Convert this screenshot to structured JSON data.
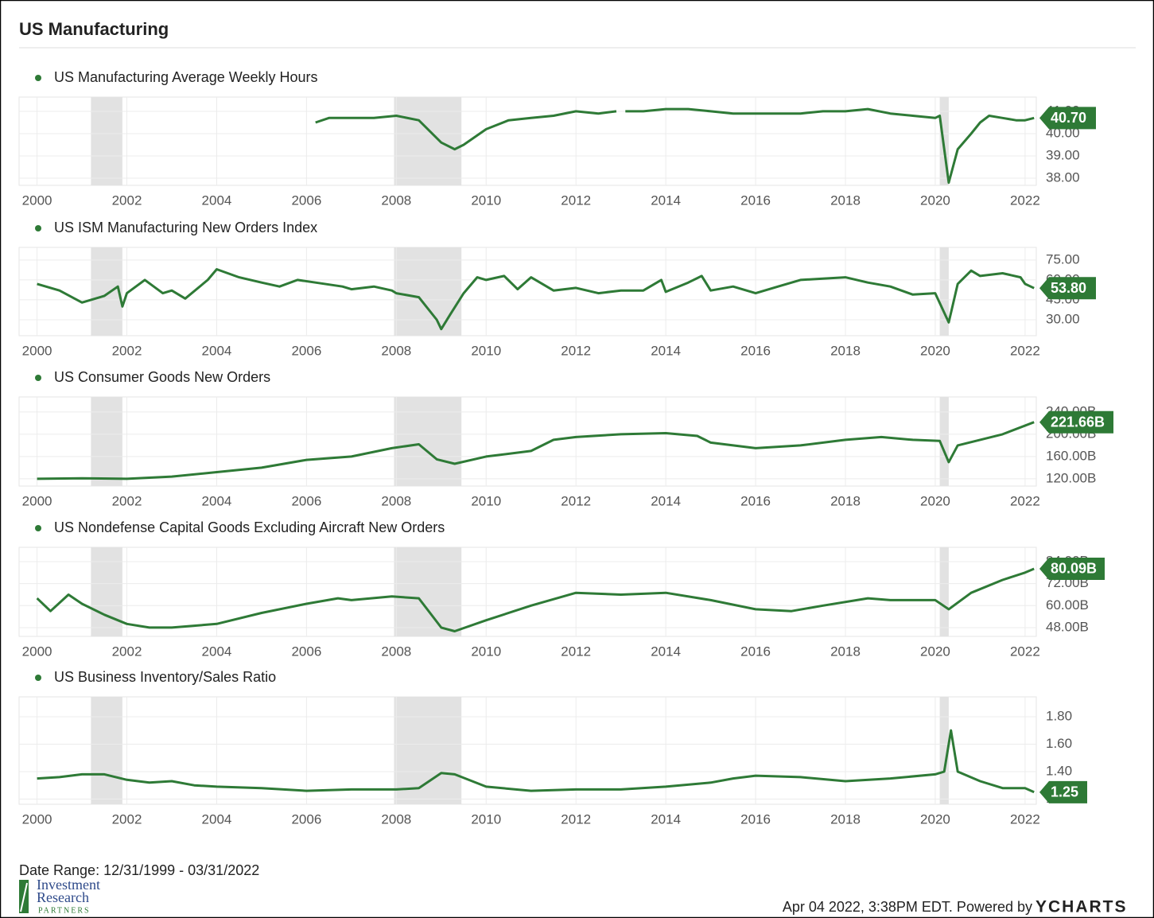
{
  "title": "US Manufacturing",
  "date_range": "Date Range: 12/31/1999 - 03/31/2022",
  "logo": {
    "line1": "Investment",
    "line2": "Research",
    "line3": "PARTNERS"
  },
  "footer": "Apr 04 2022, 3:38PM EDT. Powered by",
  "brand": "YCHARTS",
  "shaded_ranges": [
    [
      2001.2,
      2001.9
    ],
    [
      2007.95,
      2009.45
    ],
    [
      2020.1,
      2020.3
    ]
  ],
  "chart_data": [
    {
      "type": "line",
      "xlim": [
        1999.6,
        2022.25
      ],
      "xticks": [
        2000,
        2002,
        2004,
        2006,
        2008,
        2010,
        2012,
        2014,
        2016,
        2018,
        2020,
        2022
      ],
      "ylim": [
        37.68,
        41.64
      ],
      "yticks": [
        {
          "value": 38,
          "label": "38.00"
        },
        {
          "value": 39,
          "label": "39.00"
        },
        {
          "value": 40,
          "label": "40.00"
        },
        {
          "value": 41,
          "label": "41.00"
        }
      ],
      "grid": true,
      "x": [
        2006.2,
        2006.5,
        2007,
        2007.5,
        2008,
        2008.5,
        2009,
        2009.3,
        2009.5,
        2010,
        2010.5,
        2011,
        2011.5,
        2012,
        2012.5,
        2012.9,
        2013,
        2013.1,
        2013.5,
        2014,
        2014.5,
        2015,
        2015.5,
        2016,
        2016.5,
        2017,
        2017.5,
        2018,
        2018.5,
        2019,
        2019.5,
        2020,
        2020.1,
        2020.3,
        2020.5,
        2020.8,
        2021,
        2021.2,
        2021.5,
        2021.8,
        2022,
        2022.2
      ],
      "series": [
        {
          "name": "US Manufacturing Average Weekly Hours",
          "color": "#2e7a36",
          "values": [
            40.5,
            40.7,
            40.7,
            40.7,
            40.8,
            40.6,
            39.6,
            39.3,
            39.5,
            40.2,
            40.6,
            40.7,
            40.8,
            41.0,
            40.9,
            41.0,
            null,
            41.0,
            41.0,
            41.1,
            41.1,
            41.0,
            40.9,
            40.9,
            40.9,
            40.9,
            41.0,
            41.0,
            41.1,
            40.9,
            40.8,
            40.7,
            40.8,
            37.8,
            39.3,
            40.0,
            40.5,
            40.8,
            40.7,
            40.6,
            40.6,
            40.7
          ],
          "value_labels": [
            null,
            null,
            null,
            null,
            null,
            null,
            null,
            null,
            null,
            null,
            null,
            null,
            null,
            null,
            null,
            null,
            null,
            null,
            null,
            null,
            null,
            null,
            null,
            null,
            null,
            null,
            null,
            null,
            null,
            null,
            null,
            null,
            null,
            null,
            null,
            null,
            null,
            null,
            null,
            null,
            null,
            "40.70"
          ]
        }
      ]
    },
    {
      "type": "line",
      "xlim": [
        1999.6,
        2022.25
      ],
      "xticks": [
        2000,
        2002,
        2004,
        2006,
        2008,
        2010,
        2012,
        2014,
        2016,
        2018,
        2020,
        2022
      ],
      "ylim": [
        18,
        84.5
      ],
      "yticks": [
        {
          "value": 30,
          "label": "30.00"
        },
        {
          "value": 45,
          "label": "45.00"
        },
        {
          "value": 60,
          "label": "60.00"
        },
        {
          "value": 75,
          "label": "75.00"
        }
      ],
      "grid": true,
      "x": [
        2000,
        2000.5,
        2001,
        2001.5,
        2001.8,
        2001.9,
        2002,
        2002.4,
        2002.8,
        2003,
        2003.3,
        2003.8,
        2004,
        2004.5,
        2005,
        2005.4,
        2005.8,
        2006.2,
        2006.8,
        2007,
        2007.5,
        2007.9,
        2008,
        2008.5,
        2008.9,
        2009,
        2009.2,
        2009.5,
        2009.8,
        2010,
        2010.4,
        2010.7,
        2011,
        2011.5,
        2012,
        2012.5,
        2013,
        2013.5,
        2013.9,
        2014,
        2014.5,
        2014.8,
        2015,
        2015.5,
        2016,
        2016.5,
        2017,
        2017.5,
        2018,
        2018.5,
        2019,
        2019.5,
        2020,
        2020.3,
        2020.5,
        2020.8,
        2021,
        2021.5,
        2021.9,
        2022,
        2022.2
      ],
      "series": [
        {
          "name": "US ISM Manufacturing New Orders Index",
          "color": "#2e7a36",
          "values": [
            57,
            52,
            43,
            48,
            55,
            40,
            50,
            60,
            50,
            52,
            46,
            60,
            68,
            62,
            58,
            55,
            60,
            58,
            55,
            53,
            55,
            52,
            50,
            47,
            30,
            23,
            34,
            50,
            62,
            60,
            63,
            53,
            62,
            52,
            54,
            50,
            52,
            52,
            60,
            51,
            58,
            63,
            52,
            55,
            50,
            55,
            60,
            61,
            62,
            58,
            55,
            49,
            50,
            28,
            57,
            67,
            63,
            65,
            62,
            57,
            53.8
          ],
          "value_labels": [
            null,
            null,
            null,
            null,
            null,
            null,
            null,
            null,
            null,
            null,
            null,
            null,
            null,
            null,
            null,
            null,
            null,
            null,
            null,
            null,
            null,
            null,
            null,
            null,
            null,
            null,
            null,
            null,
            null,
            null,
            null,
            null,
            null,
            null,
            null,
            null,
            null,
            null,
            null,
            null,
            null,
            null,
            null,
            null,
            null,
            null,
            null,
            null,
            null,
            null,
            null,
            null,
            null,
            null,
            null,
            null,
            null,
            null,
            null,
            null,
            "53.80"
          ]
        }
      ]
    },
    {
      "type": "line",
      "xlim": [
        1999.6,
        2022.25
      ],
      "xticks": [
        2000,
        2002,
        2004,
        2006,
        2008,
        2010,
        2012,
        2014,
        2016,
        2018,
        2020,
        2022
      ],
      "ylim": [
        107,
        267
      ],
      "yticks": [
        {
          "value": 120,
          "label": "120.00B"
        },
        {
          "value": 160,
          "label": "160.00B"
        },
        {
          "value": 200,
          "label": "200.00B"
        },
        {
          "value": 240,
          "label": "240.00B"
        }
      ],
      "grid": true,
      "x": [
        2000,
        2001,
        2002,
        2003,
        2004,
        2005,
        2006,
        2007,
        2007.9,
        2008.5,
        2008.9,
        2009.3,
        2010,
        2011,
        2011.5,
        2012,
        2013,
        2014,
        2014.7,
        2015,
        2016,
        2017,
        2018,
        2018.8,
        2019.5,
        2020.1,
        2020.3,
        2020.5,
        2021,
        2021.5,
        2022.2
      ],
      "series": [
        {
          "name": "US Consumer Goods New Orders",
          "color": "#2e7a36",
          "values": [
            120,
            121,
            120,
            124,
            132,
            140,
            154,
            160,
            175,
            182,
            155,
            147,
            160,
            170,
            190,
            195,
            200,
            202,
            197,
            185,
            175,
            180,
            190,
            195,
            190,
            188,
            150,
            180,
            190,
            200,
            221.66
          ],
          "value_labels": [
            null,
            null,
            null,
            null,
            null,
            null,
            null,
            null,
            null,
            null,
            null,
            null,
            null,
            null,
            null,
            null,
            null,
            null,
            null,
            null,
            null,
            null,
            null,
            null,
            null,
            null,
            null,
            null,
            null,
            null,
            "221.66B"
          ]
        }
      ]
    },
    {
      "type": "line",
      "xlim": [
        1999.6,
        2022.25
      ],
      "xticks": [
        2000,
        2002,
        2004,
        2006,
        2008,
        2010,
        2012,
        2014,
        2016,
        2018,
        2020,
        2022
      ],
      "ylim": [
        43.2,
        91.8
      ],
      "yticks": [
        {
          "value": 48,
          "label": "48.00B"
        },
        {
          "value": 60,
          "label": "60.00B"
        },
        {
          "value": 72,
          "label": "72.00B"
        },
        {
          "value": 84,
          "label": "84.00B"
        }
      ],
      "grid": true,
      "x": [
        2000,
        2000.3,
        2000.7,
        2001,
        2001.5,
        2002,
        2002.5,
        2003,
        2004,
        2005,
        2006,
        2006.7,
        2007,
        2007.9,
        2008.5,
        2009,
        2009.3,
        2010,
        2011,
        2012,
        2013,
        2014,
        2015,
        2016,
        2016.8,
        2017.5,
        2018.5,
        2019,
        2020,
        2020.3,
        2020.8,
        2021.5,
        2022,
        2022.2
      ],
      "series": [
        {
          "name": "US Nondefense Capital Goods Excluding Aircraft New Orders",
          "color": "#2e7a36",
          "values": [
            64,
            57,
            66,
            61,
            55,
            50,
            48,
            48,
            50,
            56,
            61,
            64,
            63,
            65,
            64,
            48,
            46,
            52,
            60,
            67,
            66,
            67,
            63,
            58,
            57,
            60,
            64,
            63,
            63,
            58,
            67,
            74,
            78,
            80.09
          ],
          "value_labels": [
            null,
            null,
            null,
            null,
            null,
            null,
            null,
            null,
            null,
            null,
            null,
            null,
            null,
            null,
            null,
            null,
            null,
            null,
            null,
            null,
            null,
            null,
            null,
            null,
            null,
            null,
            null,
            null,
            null,
            null,
            null,
            null,
            null,
            "80.09B"
          ]
        }
      ]
    },
    {
      "type": "line",
      "xlim": [
        1999.6,
        2022.25
      ],
      "xticks": [
        2000,
        2002,
        2004,
        2006,
        2008,
        2010,
        2012,
        2014,
        2016,
        2018,
        2020,
        2022
      ],
      "ylim": [
        1.162,
        1.945
      ],
      "yticks": [
        {
          "value": 1.2,
          "label": "1.20"
        },
        {
          "value": 1.4,
          "label": "1.40"
        },
        {
          "value": 1.6,
          "label": "1.60"
        },
        {
          "value": 1.8,
          "label": "1.80"
        }
      ],
      "grid": true,
      "x": [
        2000,
        2000.5,
        2001,
        2001.5,
        2002,
        2002.5,
        2003,
        2003.5,
        2004,
        2005,
        2006,
        2007,
        2008,
        2008.5,
        2009,
        2009.3,
        2010,
        2011,
        2012,
        2013,
        2014,
        2015,
        2015.5,
        2016,
        2017,
        2018,
        2019,
        2020,
        2020.2,
        2020.35,
        2020.5,
        2021,
        2021.5,
        2022,
        2022.2
      ],
      "series": [
        {
          "name": "US Business Inventory/Sales Ratio",
          "color": "#2e7a36",
          "values": [
            1.35,
            1.36,
            1.38,
            1.38,
            1.34,
            1.32,
            1.33,
            1.3,
            1.29,
            1.28,
            1.26,
            1.27,
            1.27,
            1.28,
            1.39,
            1.38,
            1.29,
            1.26,
            1.27,
            1.27,
            1.29,
            1.32,
            1.35,
            1.37,
            1.36,
            1.33,
            1.35,
            1.38,
            1.4,
            1.7,
            1.4,
            1.33,
            1.28,
            1.28,
            1.25
          ],
          "value_labels": [
            null,
            null,
            null,
            null,
            null,
            null,
            null,
            null,
            null,
            null,
            null,
            null,
            null,
            null,
            null,
            null,
            null,
            null,
            null,
            null,
            null,
            null,
            null,
            null,
            null,
            null,
            null,
            null,
            null,
            null,
            null,
            null,
            null,
            null,
            "1.25"
          ]
        }
      ]
    }
  ]
}
